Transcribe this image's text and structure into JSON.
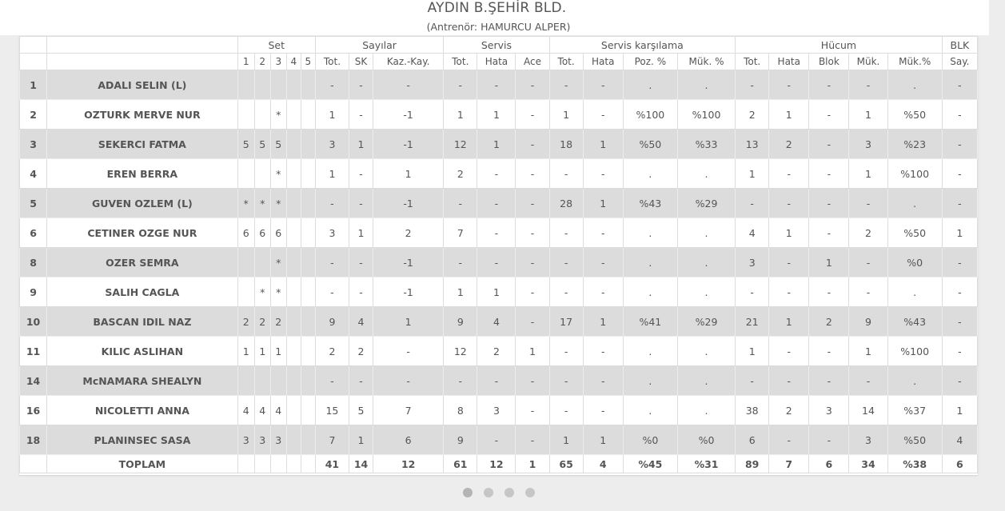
{
  "header": {
    "team": "AYDIN B.ŞEHİR BLD.",
    "coach": "(Antrenör: HAMURCU ALPER)"
  },
  "columns": {
    "groups": {
      "set": "Set",
      "sayilar": "Sayılar",
      "servis": "Servis",
      "servis_karsilama": "Servis karşılama",
      "hucum": "Hücum",
      "blk": "BLK"
    },
    "sub": [
      "1",
      "2",
      "3",
      "4",
      "5",
      "Tot.",
      "SK",
      "Kaz.-Kay.",
      "Tot.",
      "Hata",
      "Ace",
      "Tot.",
      "Hata",
      "Poz. %",
      "Mük. %",
      "Tot.",
      "Hata",
      "Blok",
      "Mük.",
      "Mük.%",
      "Say."
    ]
  },
  "players": [
    {
      "no": "1",
      "name": "ADALI SELIN (L)",
      "cells": [
        "",
        "",
        "",
        "",
        "",
        "-",
        "-",
        "-",
        "-",
        "-",
        "-",
        "-",
        "-",
        ".",
        ".",
        "-",
        "-",
        "-",
        "-",
        ".",
        "-"
      ]
    },
    {
      "no": "2",
      "name": "OZTURK MERVE NUR",
      "cells": [
        "",
        "",
        "*",
        "",
        "",
        "1",
        "-",
        "-1",
        "1",
        "1",
        "-",
        "1",
        "-",
        "%100",
        "%100",
        "2",
        "1",
        "-",
        "1",
        "%50",
        "-"
      ]
    },
    {
      "no": "3",
      "name": "SEKERCI FATMA",
      "cells": [
        "5",
        "5",
        "5",
        "",
        "",
        "3",
        "1",
        "-1",
        "12",
        "1",
        "-",
        "18",
        "1",
        "%50",
        "%33",
        "13",
        "2",
        "-",
        "3",
        "%23",
        "-"
      ]
    },
    {
      "no": "4",
      "name": "EREN BERRA",
      "cells": [
        "",
        "",
        "*",
        "",
        "",
        "1",
        "-",
        "1",
        "2",
        "-",
        "-",
        "-",
        "-",
        ".",
        ".",
        "1",
        "-",
        "-",
        "1",
        "%100",
        "-"
      ]
    },
    {
      "no": "5",
      "name": "GUVEN OZLEM (L)",
      "cells": [
        "*",
        "*",
        "*",
        "",
        "",
        "-",
        "-",
        "-1",
        "-",
        "-",
        "-",
        "28",
        "1",
        "%43",
        "%29",
        "-",
        "-",
        "-",
        "-",
        ".",
        "-"
      ]
    },
    {
      "no": "6",
      "name": "CETINER OZGE NUR",
      "cells": [
        "6",
        "6",
        "6",
        "",
        "",
        "3",
        "1",
        "2",
        "7",
        "-",
        "-",
        "-",
        "-",
        ".",
        ".",
        "4",
        "1",
        "-",
        "2",
        "%50",
        "1"
      ]
    },
    {
      "no": "8",
      "name": "OZER SEMRA",
      "cells": [
        "",
        "",
        "*",
        "",
        "",
        "-",
        "-",
        "-1",
        "-",
        "-",
        "-",
        "-",
        "-",
        ".",
        ".",
        "3",
        "-",
        "1",
        "-",
        "%0",
        "-"
      ]
    },
    {
      "no": "9",
      "name": "SALIH CAGLA",
      "cells": [
        "",
        "*",
        "*",
        "",
        "",
        "-",
        "-",
        "-1",
        "1",
        "1",
        "-",
        "-",
        "-",
        ".",
        ".",
        "-",
        "-",
        "-",
        "-",
        ".",
        "-"
      ]
    },
    {
      "no": "10",
      "name": "BASCAN IDIL NAZ",
      "cells": [
        "2",
        "2",
        "2",
        "",
        "",
        "9",
        "4",
        "1",
        "9",
        "4",
        "-",
        "17",
        "1",
        "%41",
        "%29",
        "21",
        "1",
        "2",
        "9",
        "%43",
        "-"
      ]
    },
    {
      "no": "11",
      "name": "KILIC ASLIHAN",
      "cells": [
        "1",
        "1",
        "1",
        "",
        "",
        "2",
        "2",
        "-",
        "12",
        "2",
        "1",
        "-",
        "-",
        ".",
        ".",
        "1",
        "-",
        "-",
        "1",
        "%100",
        "-"
      ]
    },
    {
      "no": "14",
      "name": "McNAMARA SHEALYN",
      "cells": [
        "",
        "",
        "",
        "",
        "",
        "-",
        "-",
        "-",
        "-",
        "-",
        "-",
        "-",
        "-",
        ".",
        ".",
        "-",
        "-",
        "-",
        "-",
        ".",
        "-"
      ]
    },
    {
      "no": "16",
      "name": "NICOLETTI ANNA",
      "cells": [
        "4",
        "4",
        "4",
        "",
        "",
        "15",
        "5",
        "7",
        "8",
        "3",
        "-",
        "-",
        "-",
        ".",
        ".",
        "38",
        "2",
        "3",
        "14",
        "%37",
        "1"
      ]
    },
    {
      "no": "18",
      "name": "PLANINSEC SASA",
      "cells": [
        "3",
        "3",
        "3",
        "",
        "",
        "7",
        "1",
        "6",
        "9",
        "-",
        "-",
        "1",
        "1",
        "%0",
        "%0",
        "6",
        "-",
        "-",
        "3",
        "%50",
        "4"
      ]
    }
  ],
  "totals": {
    "label": "TOPLAM",
    "cells": [
      "",
      "",
      "",
      "",
      "",
      "41",
      "14",
      "12",
      "61",
      "12",
      "1",
      "65",
      "4",
      "%45",
      "%31",
      "89",
      "7",
      "6",
      "34",
      "%38",
      "6"
    ]
  },
  "pager": {
    "count": 4,
    "active": 0
  }
}
